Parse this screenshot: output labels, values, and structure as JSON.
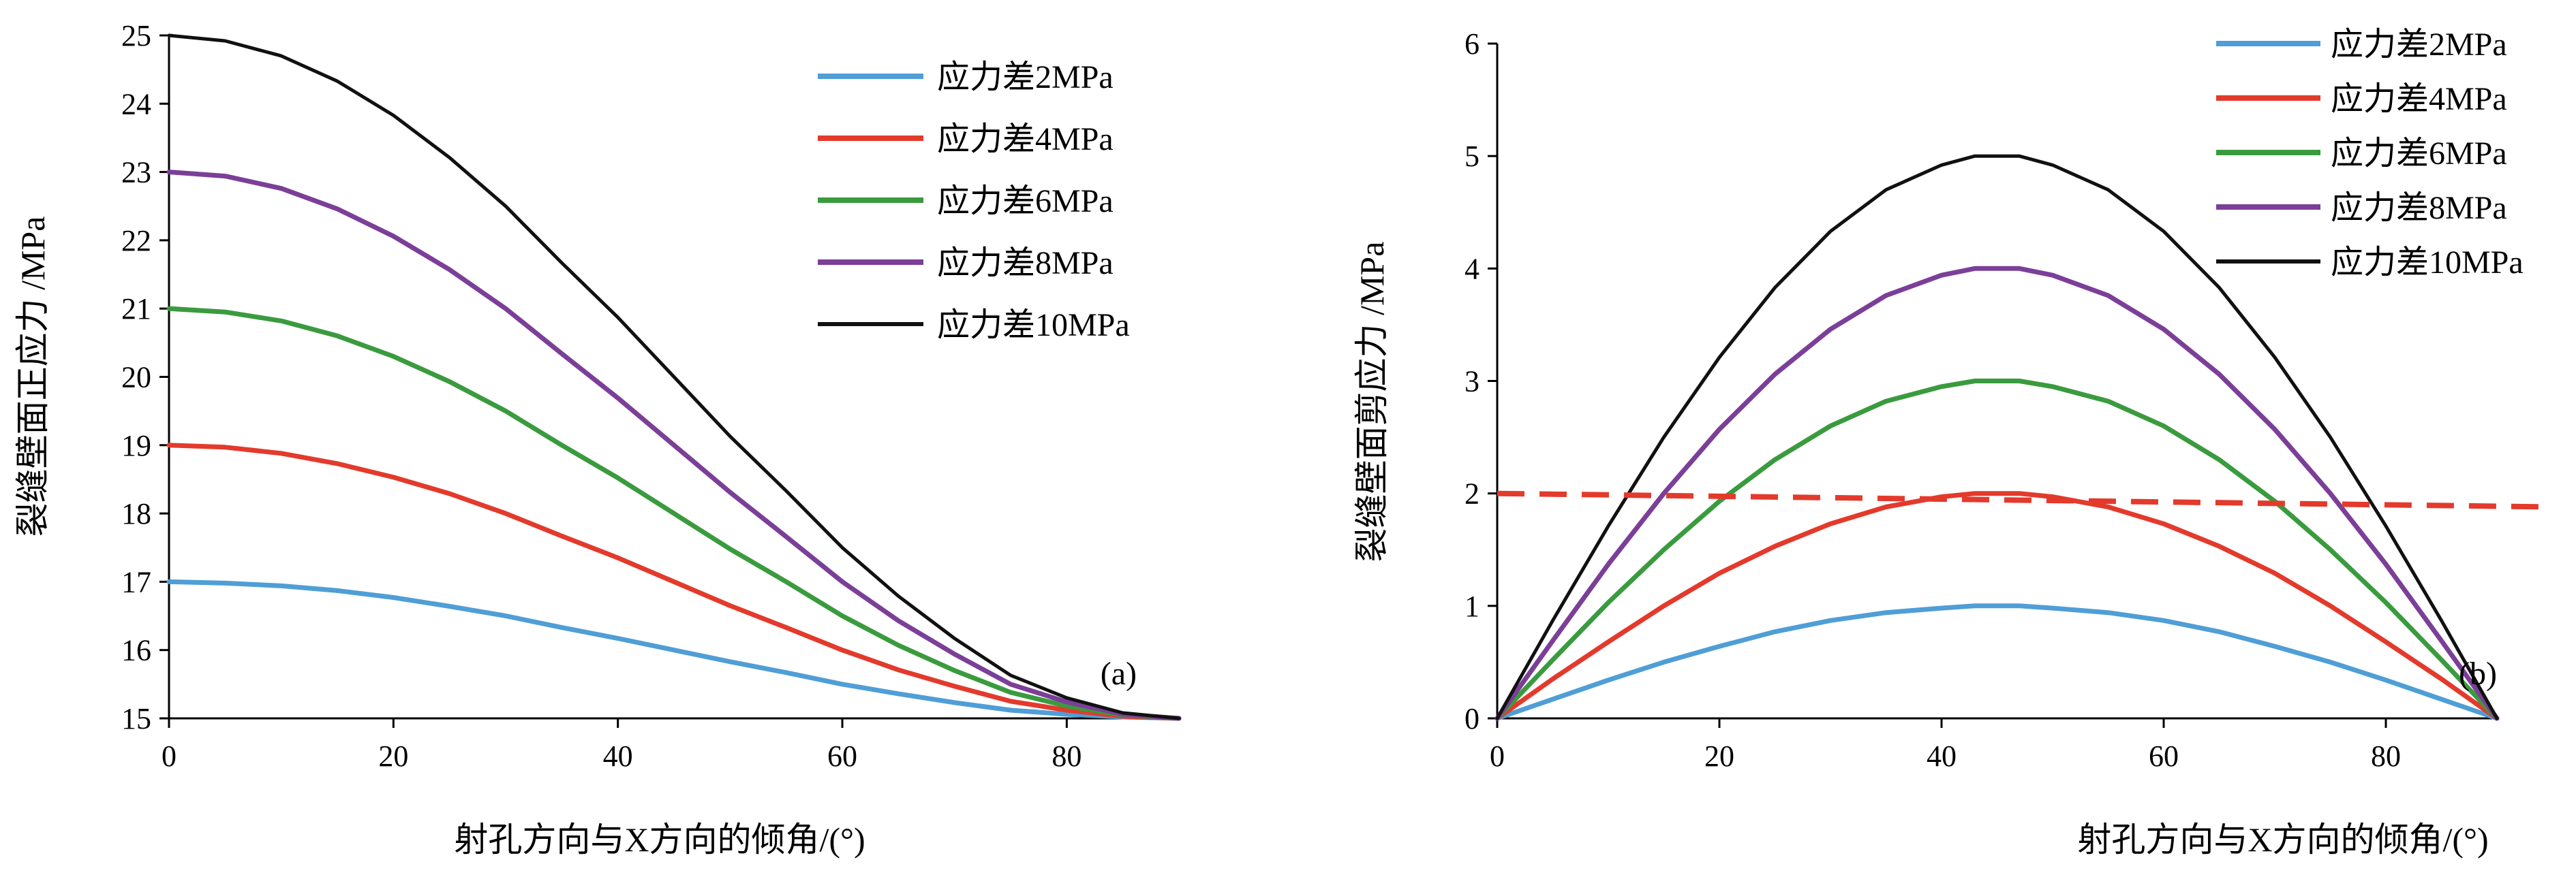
{
  "chart_data": [
    {
      "type": "line",
      "panel_label": "(a)",
      "xlabel": "射孔方向与X方向的倾角/(°)",
      "ylabel": "裂缝壁面正应力 /MPa",
      "xlim": [
        0,
        90
      ],
      "ylim": [
        15,
        25
      ],
      "x_ticks": [
        0,
        20,
        40,
        60,
        80
      ],
      "y_ticks": [
        15,
        16,
        17,
        18,
        19,
        20,
        21,
        22,
        23,
        24,
        25
      ],
      "grid": false,
      "legend_position": "top-right",
      "x": [
        0,
        5,
        10,
        15,
        20,
        25,
        30,
        35,
        40,
        45,
        50,
        55,
        60,
        65,
        70,
        75,
        80,
        85,
        90
      ],
      "series": [
        {
          "name": "应力差2MPa",
          "color": "#4f9ed6",
          "values": [
            17,
            16.98,
            16.94,
            16.87,
            16.77,
            16.64,
            16.5,
            16.33,
            16.17,
            16.0,
            15.83,
            15.67,
            15.5,
            15.36,
            15.23,
            15.12,
            15.06,
            15.02,
            15
          ]
        },
        {
          "name": "应力差4MPa",
          "color": "#e33a2c",
          "values": [
            19,
            18.97,
            18.88,
            18.73,
            18.53,
            18.29,
            18.0,
            17.67,
            17.35,
            17.0,
            16.65,
            16.33,
            16.0,
            15.71,
            15.47,
            15.25,
            15.12,
            15.03,
            15
          ]
        },
        {
          "name": "应力差6MPa",
          "color": "#3a9b3e",
          "values": [
            21,
            20.95,
            20.82,
            20.6,
            20.3,
            19.93,
            19.5,
            19.0,
            18.52,
            18.0,
            17.48,
            17.0,
            16.5,
            16.07,
            15.7,
            15.38,
            15.18,
            15.05,
            15
          ]
        },
        {
          "name": "应力差8MPa",
          "color": "#7b3f98",
          "values": [
            23,
            22.94,
            22.76,
            22.46,
            22.06,
            21.57,
            21.0,
            20.34,
            19.69,
            19.0,
            18.31,
            17.66,
            17.0,
            16.43,
            15.94,
            15.5,
            15.24,
            15.06,
            15
          ]
        },
        {
          "name": "应力差10MPa",
          "color": "#111111",
          "values": [
            25,
            24.92,
            24.7,
            24.33,
            23.83,
            23.21,
            22.5,
            21.67,
            20.87,
            20.0,
            19.13,
            18.33,
            17.5,
            16.79,
            16.17,
            15.63,
            15.3,
            15.08,
            15
          ]
        }
      ]
    },
    {
      "type": "line",
      "panel_label": "(b)",
      "xlabel": "射孔方向与X方向的倾角/(°)",
      "ylabel": "裂缝壁面剪应力 /MPa",
      "xlim": [
        0,
        90
      ],
      "ylim": [
        0,
        6
      ],
      "x_ticks": [
        0,
        20,
        40,
        60,
        80
      ],
      "y_ticks": [
        0,
        1,
        2,
        3,
        4,
        5,
        6
      ],
      "grid": false,
      "legend_position": "top-right",
      "x": [
        0,
        5,
        10,
        15,
        20,
        25,
        30,
        35,
        40,
        43,
        47,
        50,
        55,
        60,
        65,
        70,
        75,
        80,
        85,
        90
      ],
      "series": [
        {
          "name": "应力差2MPa",
          "color": "#4f9ed6",
          "values": [
            0,
            0.17,
            0.34,
            0.5,
            0.64,
            0.77,
            0.87,
            0.94,
            0.98,
            1.0,
            1.0,
            0.98,
            0.94,
            0.87,
            0.77,
            0.64,
            0.5,
            0.34,
            0.17,
            0
          ]
        },
        {
          "name": "应力差4MPa",
          "color": "#e33a2c",
          "values": [
            0,
            0.35,
            0.68,
            1.0,
            1.29,
            1.53,
            1.73,
            1.88,
            1.97,
            2.0,
            2.0,
            1.97,
            1.88,
            1.73,
            1.53,
            1.29,
            1.0,
            0.68,
            0.35,
            0
          ]
        },
        {
          "name": "应力差6MPa",
          "color": "#3a9b3e",
          "values": [
            0,
            0.52,
            1.03,
            1.5,
            1.93,
            2.3,
            2.6,
            2.82,
            2.95,
            3.0,
            3.0,
            2.95,
            2.82,
            2.6,
            2.3,
            1.93,
            1.5,
            1.03,
            0.52,
            0
          ]
        },
        {
          "name": "应力差8MPa",
          "color": "#7b3f98",
          "values": [
            0,
            0.69,
            1.37,
            2.0,
            2.57,
            3.06,
            3.46,
            3.76,
            3.94,
            4.0,
            4.0,
            3.94,
            3.76,
            3.46,
            3.06,
            2.57,
            2.0,
            1.37,
            0.69,
            0
          ]
        },
        {
          "name": "应力差10MPa",
          "color": "#111111",
          "values": [
            0,
            0.87,
            1.71,
            2.5,
            3.21,
            3.83,
            4.33,
            4.7,
            4.92,
            5.0,
            5.0,
            4.92,
            4.7,
            4.33,
            3.83,
            3.21,
            2.5,
            1.71,
            0.87,
            0
          ]
        }
      ],
      "reference_line": {
        "color": "#e33a2c",
        "style": "dashed",
        "x": [
          0,
          95
        ],
        "values": [
          2.0,
          1.88
        ]
      }
    }
  ]
}
